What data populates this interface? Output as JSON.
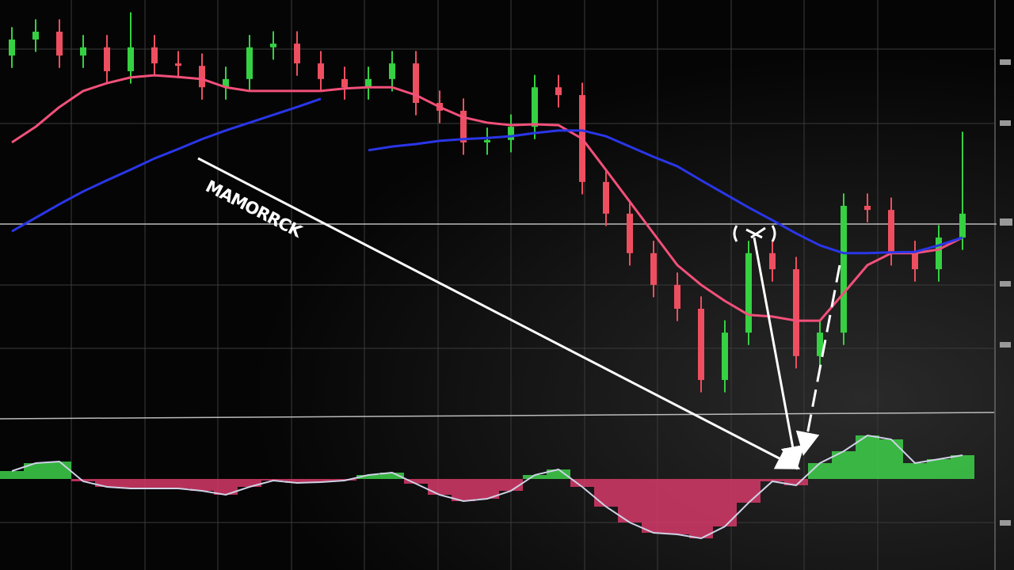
{
  "chart_data": {
    "type": "candlestick",
    "annotation": "MAMORRCK",
    "ylim": [
      0,
      100
    ],
    "up_color": "#35d142",
    "down_color": "#ee4f60",
    "open": [
      86.5,
      90.4,
      92.3,
      86.5,
      88.5,
      82.7,
      88.5,
      84.6,
      84.0,
      78.8,
      80.8,
      88.5,
      89.4,
      84.6,
      80.8,
      78.8,
      80.8,
      84.6,
      75.0,
      73.1,
      65.4,
      66.0,
      69.2,
      78.8,
      76.9,
      55.8,
      48.1,
      38.5,
      30.8,
      25.0,
      7.7,
      19.2,
      38.5,
      34.6,
      13.5,
      19.2,
      50.0,
      49.0,
      38.5,
      34.6,
      42.3
    ],
    "close": [
      90.4,
      92.3,
      86.5,
      88.5,
      82.7,
      88.5,
      84.6,
      84.0,
      78.8,
      80.8,
      88.5,
      89.4,
      84.6,
      80.8,
      78.8,
      80.8,
      84.6,
      75.0,
      73.1,
      65.4,
      66.0,
      69.2,
      78.8,
      76.9,
      55.8,
      48.1,
      38.5,
      30.8,
      25.0,
      7.7,
      19.2,
      38.5,
      34.6,
      13.5,
      19.2,
      50.0,
      49.0,
      38.5,
      34.6,
      42.3,
      48.1
    ],
    "high": [
      93.4,
      95.3,
      95.3,
      91.5,
      91.5,
      97.0,
      91.5,
      87.6,
      87.0,
      83.8,
      91.5,
      92.4,
      92.4,
      87.6,
      83.8,
      83.8,
      87.6,
      87.6,
      78.0,
      76.1,
      69.0,
      72.2,
      81.8,
      81.8,
      79.9,
      58.8,
      51.1,
      41.5,
      33.8,
      28.0,
      22.2,
      41.5,
      41.5,
      37.6,
      22.2,
      53.0,
      53.0,
      52.0,
      41.5,
      45.3,
      68.0
    ],
    "low": [
      83.5,
      87.4,
      83.5,
      83.5,
      79.7,
      79.7,
      81.6,
      81.0,
      75.8,
      75.8,
      77.8,
      85.5,
      81.6,
      77.8,
      75.8,
      75.8,
      77.8,
      72.0,
      70.1,
      62.4,
      62.4,
      63.0,
      66.2,
      73.9,
      52.8,
      45.1,
      35.5,
      27.8,
      22.0,
      4.7,
      4.7,
      16.2,
      31.6,
      10.5,
      10.5,
      16.2,
      46.0,
      35.5,
      31.6,
      31.6,
      39.3
    ],
    "series": [
      {
        "color": "#f2507a",
        "values": [
          65.4,
          69.2,
          74.0,
          77.9,
          79.8,
          81.2,
          81.7,
          81.3,
          80.8,
          78.8,
          77.9,
          77.9,
          77.9,
          77.9,
          78.5,
          78.8,
          78.8,
          76.9,
          74.0,
          71.5,
          70.2,
          69.6,
          69.8,
          69.6,
          66.3,
          58.7,
          51.0,
          43.3,
          35.6,
          30.8,
          26.9,
          23.5,
          23.1,
          22.1,
          22.1,
          28.8,
          35.6,
          38.5,
          38.5,
          39.4,
          42.3
        ]
      },
      {
        "color": "#2a36e8",
        "values": [
          43.8,
          47.1,
          50.4,
          53.5,
          56.2,
          58.8,
          61.5,
          63.8,
          66.2,
          68.3,
          70.2,
          72.1,
          74.0,
          76.0,
          null,
          63.5,
          64.4,
          65.0,
          65.8,
          66.2,
          66.5,
          66.9,
          67.7,
          68.3,
          68.3,
          66.9,
          64.4,
          61.9,
          59.6,
          56.2,
          52.9,
          49.6,
          46.5,
          43.3,
          40.4,
          38.5,
          38.5,
          38.7,
          38.8,
          40.4,
          42.3
        ]
      }
    ],
    "oscillator": {
      "ylim": [
        -95,
        65
      ],
      "up_color": "#3ed04a",
      "down_color": "#d63a68",
      "values": [
        10,
        20,
        22,
        -3,
        -10,
        -12,
        -12,
        -12,
        -15,
        -20,
        -10,
        -2,
        -5,
        -4,
        -2,
        5,
        8,
        -6,
        -20,
        -28,
        -25,
        -15,
        5,
        12,
        -10,
        -35,
        -55,
        -68,
        -70,
        -75,
        -60,
        -30,
        -3,
        -8,
        20,
        35,
        55,
        50,
        20,
        25,
        30
      ]
    }
  }
}
